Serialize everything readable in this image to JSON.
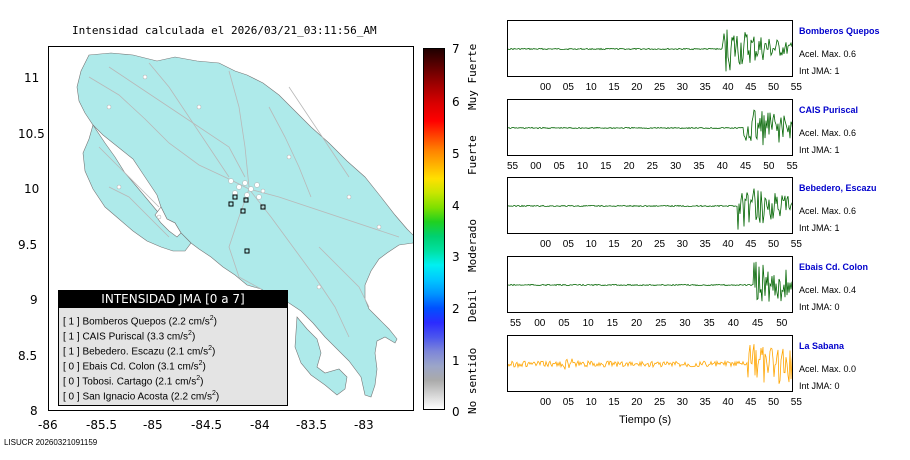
{
  "map": {
    "title": "Intensidad calculada el 2026/03/21_03:11:56_AM",
    "y_ticks": [
      "11",
      "10.5",
      "10",
      "9.5",
      "9",
      "8.5",
      "8"
    ],
    "x_ticks": [
      "-86",
      "-85.5",
      "-85",
      "-84.5",
      "-84",
      "-83.5",
      "-83"
    ],
    "land_color": "#aeeaea",
    "road_color": "#b8b8b8"
  },
  "legend": {
    "header": "INTENSIDAD JMA [0 a 7]",
    "rows": [
      {
        "text": "[ 1 ]  Bomberos Quepos (2.2 cm/s",
        "sup": "2",
        "tail": ")"
      },
      {
        "text": "[ 1 ]  CAIS Puriscal (3.3 cm/s",
        "sup": "2",
        "tail": ")"
      },
      {
        "text": "[ 1 ]  Bebedero. Escazu (2.1 cm/s",
        "sup": "2",
        "tail": ")"
      },
      {
        "text": "[ 0 ]  Ebais Cd. Colon (3.1 cm/s",
        "sup": "2",
        "tail": ")"
      },
      {
        "text": "[ 0 ]  Tobosi. Cartago (2.1 cm/s",
        "sup": "2",
        "tail": ")"
      },
      {
        "text": "[ 0 ]  San Ignacio Acosta (2.2 cm/s",
        "sup": "2",
        "tail": ")"
      }
    ]
  },
  "colorbar": {
    "numbers": [
      "7",
      "6",
      "5",
      "4",
      "3",
      "2",
      "1",
      "0"
    ],
    "labels": [
      "Muy Fuerte",
      "Fuerte",
      "Moderado",
      "Debil",
      "No sentido"
    ]
  },
  "stations": [
    {
      "name": "Bomberos Quepos",
      "accel": "Acel. Max. 0.6",
      "jma": "Int JMA: 1",
      "color": "#006400",
      "ticks": [
        "00",
        "05",
        "10",
        "15",
        "20",
        "25",
        "30",
        "35",
        "40",
        "45",
        "50",
        "55"
      ]
    },
    {
      "name": "CAIS Puriscal",
      "accel": "Acel. Max. 0.6",
      "jma": "Int JMA: 1",
      "color": "#006400",
      "ticks": [
        "55",
        "00",
        "05",
        "10",
        "15",
        "20",
        "25",
        "30",
        "35",
        "40",
        "45",
        "50",
        "55"
      ]
    },
    {
      "name": "Bebedero, Escazu",
      "accel": "Acel. Max. 0.6",
      "jma": "Int JMA: 1",
      "color": "#006400",
      "ticks": [
        "00",
        "05",
        "10",
        "15",
        "20",
        "25",
        "30",
        "35",
        "40",
        "45",
        "50",
        "55"
      ]
    },
    {
      "name": "Ebais Cd. Colon",
      "accel": "Acel. Max. 0.4",
      "jma": "Int JMA: 0",
      "color": "#006400",
      "ticks": [
        "55",
        "00",
        "05",
        "10",
        "15",
        "20",
        "25",
        "30",
        "35",
        "40",
        "45",
        "50"
      ]
    },
    {
      "name": "La Sabana",
      "accel": "Acel. Max. 0.0",
      "jma": "Int JMA: 0",
      "color": "#ffa500",
      "ticks": [
        "00",
        "05",
        "10",
        "15",
        "20",
        "25",
        "30",
        "35",
        "40",
        "45",
        "50",
        "55"
      ]
    }
  ],
  "time_axis_title": "Tiempo (s)",
  "footer": "LISUCR 20260321091159"
}
